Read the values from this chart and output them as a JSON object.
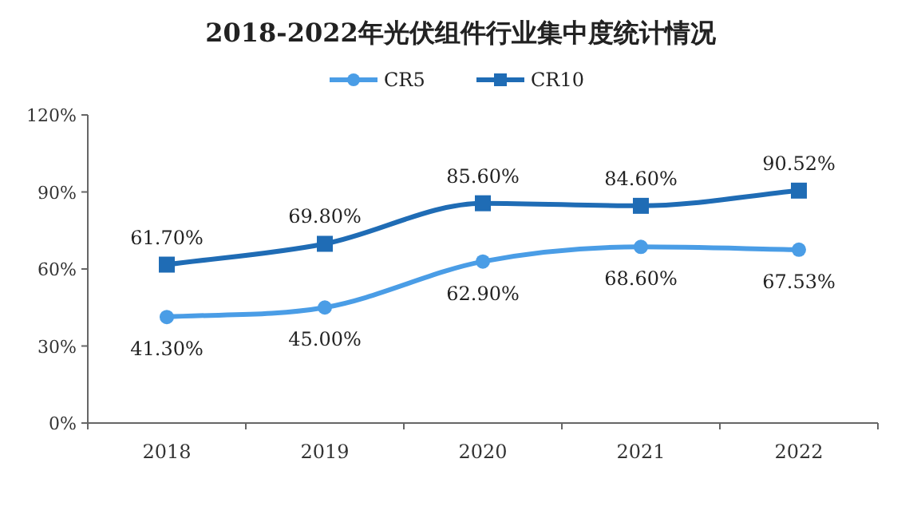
{
  "chart_data": {
    "type": "line",
    "title": "2018-2022年光伏组件行业集中度统计情况",
    "categories": [
      "2018",
      "2019",
      "2020",
      "2021",
      "2022"
    ],
    "series": [
      {
        "name": "CR5",
        "color": "#4a9de6",
        "marker": "circle",
        "values": [
          41.3,
          45.0,
          62.9,
          68.6,
          67.53
        ],
        "value_labels": [
          "41.30%",
          "45.00%",
          "62.90%",
          "68.60%",
          "67.53%"
        ]
      },
      {
        "name": "CR10",
        "color": "#1f6cb5",
        "marker": "square",
        "values": [
          61.7,
          69.8,
          85.6,
          84.6,
          90.52
        ],
        "value_labels": [
          "61.70%",
          "69.80%",
          "85.60%",
          "84.60%",
          "90.52%"
        ]
      }
    ],
    "ylim": [
      0,
      120
    ],
    "yticks": [
      {
        "value": 0,
        "label": "0%"
      },
      {
        "value": 30,
        "label": "30%"
      },
      {
        "value": 60,
        "label": "60%"
      },
      {
        "value": 90,
        "label": "90%"
      },
      {
        "value": 120,
        "label": "120%"
      }
    ],
    "grid": false,
    "legend": "top"
  }
}
